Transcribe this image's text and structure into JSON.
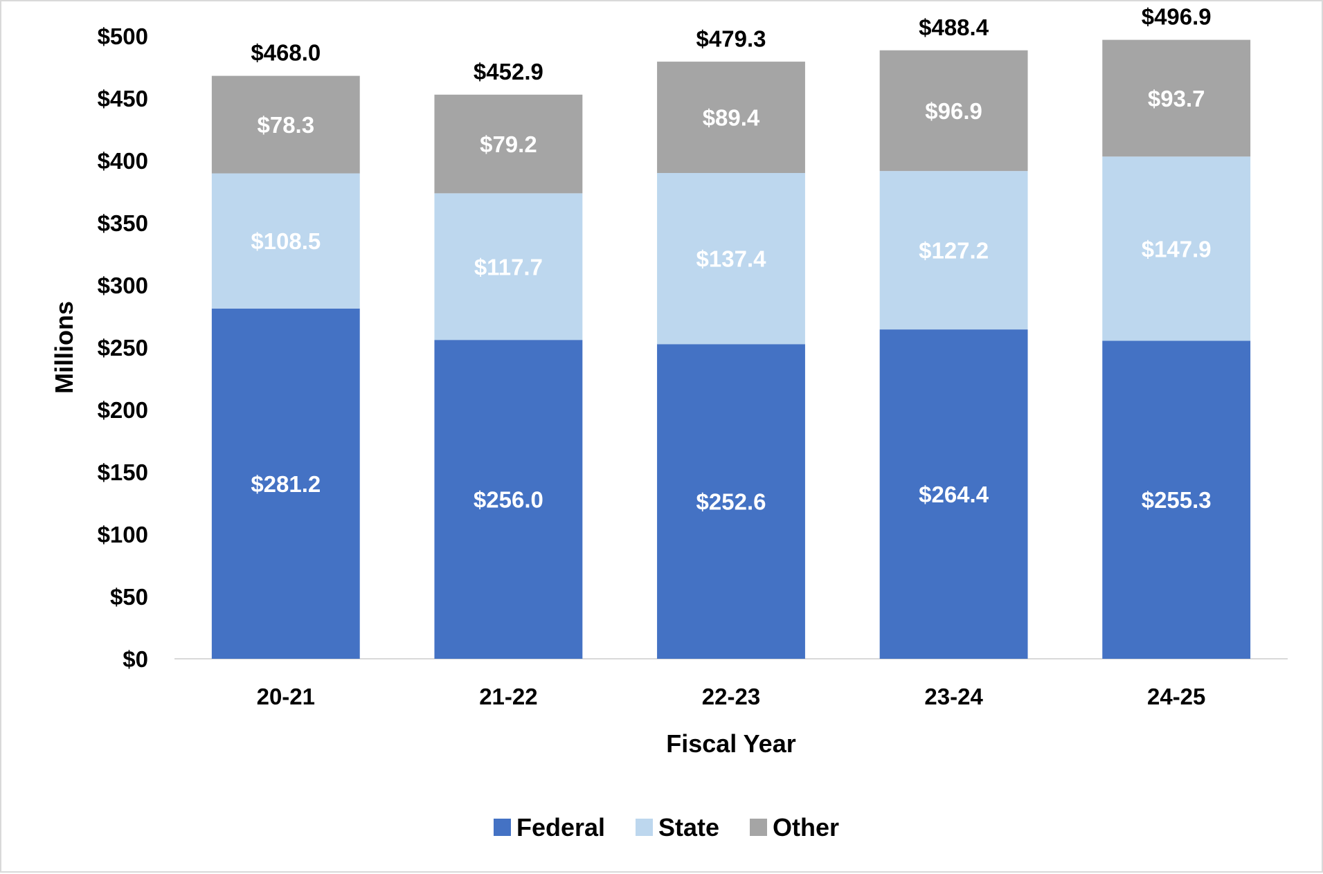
{
  "chart_data": {
    "type": "bar",
    "stacked": true,
    "categories": [
      "20-21",
      "21-22",
      "22-23",
      "23-24",
      "24-25"
    ],
    "series": [
      {
        "name": "Federal",
        "color": "#4472c4",
        "label_color": "#ffffff",
        "values": [
          281.2,
          256.0,
          252.6,
          264.4,
          255.3
        ],
        "labels": [
          "$281.2",
          "$256.0",
          "$252.6",
          "$264.4",
          "$255.3"
        ]
      },
      {
        "name": "State",
        "color": "#bdd7ee",
        "label_color": "#ffffff",
        "values": [
          108.5,
          117.7,
          137.4,
          127.2,
          147.9
        ],
        "labels": [
          "$108.5",
          "$117.7",
          "$137.4",
          "$127.2",
          "$147.9"
        ]
      },
      {
        "name": "Other",
        "color": "#a5a5a5",
        "label_color": "#ffffff",
        "values": [
          78.3,
          79.2,
          89.4,
          96.9,
          93.7
        ],
        "labels": [
          "$78.3",
          "$79.2",
          "$89.4",
          "$96.9",
          "$93.7"
        ]
      }
    ],
    "totals": [
      468.0,
      452.9,
      479.3,
      488.4,
      496.9
    ],
    "total_labels": [
      "$468.0",
      "$452.9",
      "$479.3",
      "$488.4",
      "$496.9"
    ],
    "xlabel": "Fiscal Year",
    "ylabel": "Millions",
    "ylim": [
      0,
      500
    ],
    "yticks": [
      0,
      50,
      100,
      150,
      200,
      250,
      300,
      350,
      400,
      450,
      500
    ],
    "ytick_labels": [
      "$0",
      "$50",
      "$100",
      "$150",
      "$200",
      "$250",
      "$300",
      "$350",
      "$400",
      "$450",
      "$500"
    ],
    "grid": false,
    "legend_position": "bottom"
  }
}
